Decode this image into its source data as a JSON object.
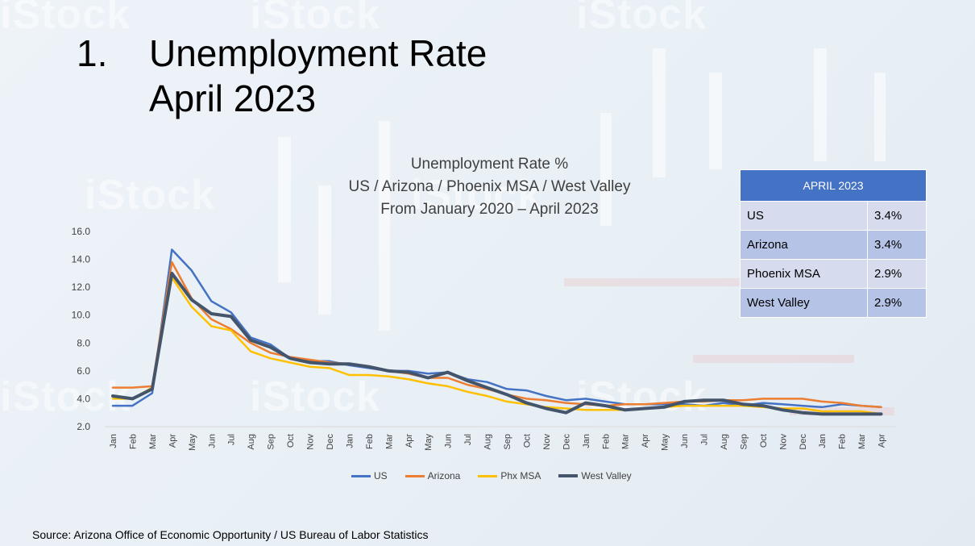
{
  "slide": {
    "number": "1.",
    "title_line1": "Unemployment Rate",
    "title_line2": "April 2023",
    "source": "Source: Arizona Office of Economic Opportunity / US Bureau of Labor Statistics"
  },
  "summary_table": {
    "header": "APRIL 2023",
    "rows": [
      {
        "label": "US",
        "value": "3.4%"
      },
      {
        "label": "Arizona",
        "value": "3.4%"
      },
      {
        "label": "Phoenix MSA",
        "value": "2.9%"
      },
      {
        "label": "West Valley",
        "value": "2.9%"
      }
    ]
  },
  "chart_data": {
    "type": "line",
    "title_lines": [
      "Unemployment Rate %",
      "US / Arizona / Phoenix MSA / West Valley",
      "From January 2020 – April 2023"
    ],
    "xlabel": "",
    "ylabel": "",
    "ylim": [
      2.0,
      16.0
    ],
    "yticks": [
      "2.0",
      "4.0",
      "6.0",
      "8.0",
      "10.0",
      "12.0",
      "14.0",
      "16.0"
    ],
    "grid": false,
    "legend_position": "bottom",
    "categories": [
      "Jan",
      "Feb",
      "Mar",
      "Apr",
      "May",
      "Jun",
      "Jul",
      "Aug",
      "Sep",
      "Oct",
      "Nov",
      "Dec",
      "Jan",
      "Feb",
      "Mar",
      "Apr",
      "May",
      "Jun",
      "Jul",
      "Aug",
      "Sep",
      "Oct",
      "Nov",
      "Dec",
      "Jan",
      "Feb",
      "Mar",
      "Apr",
      "May",
      "Jun",
      "Jul",
      "Aug",
      "Sep",
      "Oct",
      "Nov",
      "Dec",
      "Jan",
      "Feb",
      "Mar",
      "Apr"
    ],
    "series": [
      {
        "name": "US",
        "color": "#4472c4",
        "width": 2.5,
        "values": [
          3.5,
          3.5,
          4.4,
          14.7,
          13.2,
          11.0,
          10.2,
          8.4,
          7.9,
          6.9,
          6.7,
          6.7,
          6.4,
          6.2,
          6.0,
          6.0,
          5.8,
          5.9,
          5.4,
          5.2,
          4.7,
          4.6,
          4.2,
          3.9,
          4.0,
          3.8,
          3.6,
          3.6,
          3.6,
          3.6,
          3.5,
          3.7,
          3.5,
          3.7,
          3.6,
          3.5,
          3.4,
          3.6,
          3.5,
          3.4
        ]
      },
      {
        "name": "Arizona",
        "color": "#ed7d31",
        "width": 2.5,
        "values": [
          4.8,
          4.8,
          4.9,
          13.8,
          11.2,
          9.7,
          9.0,
          8.0,
          7.3,
          7.0,
          6.8,
          6.6,
          6.5,
          6.3,
          6.0,
          5.8,
          5.5,
          5.5,
          5.0,
          4.7,
          4.3,
          4.0,
          3.9,
          3.7,
          3.6,
          3.5,
          3.6,
          3.6,
          3.7,
          3.8,
          3.8,
          3.9,
          3.9,
          4.0,
          4.0,
          4.0,
          3.8,
          3.7,
          3.5,
          3.4
        ]
      },
      {
        "name": "Phx MSA",
        "color": "#ffc000",
        "width": 2.5,
        "values": [
          4.0,
          4.0,
          4.8,
          12.7,
          10.6,
          9.2,
          8.9,
          7.4,
          6.9,
          6.6,
          6.3,
          6.2,
          5.7,
          5.7,
          5.6,
          5.4,
          5.1,
          4.9,
          4.5,
          4.2,
          3.8,
          3.6,
          3.4,
          3.3,
          3.2,
          3.2,
          3.2,
          3.3,
          3.4,
          3.5,
          3.5,
          3.5,
          3.5,
          3.4,
          3.3,
          3.3,
          3.1,
          3.1,
          3.1,
          2.9
        ]
      },
      {
        "name": "West Valley",
        "color": "#44546a",
        "width": 4,
        "values": [
          4.2,
          4.0,
          4.7,
          13.0,
          11.1,
          10.1,
          9.9,
          8.2,
          7.7,
          6.9,
          6.6,
          6.5,
          6.5,
          6.3,
          6.0,
          5.9,
          5.5,
          5.9,
          5.3,
          4.8,
          4.3,
          3.7,
          3.3,
          3.0,
          3.7,
          3.5,
          3.2,
          3.3,
          3.4,
          3.8,
          3.9,
          3.9,
          3.6,
          3.5,
          3.2,
          3.0,
          2.9,
          2.9,
          2.9,
          2.9
        ]
      }
    ]
  }
}
